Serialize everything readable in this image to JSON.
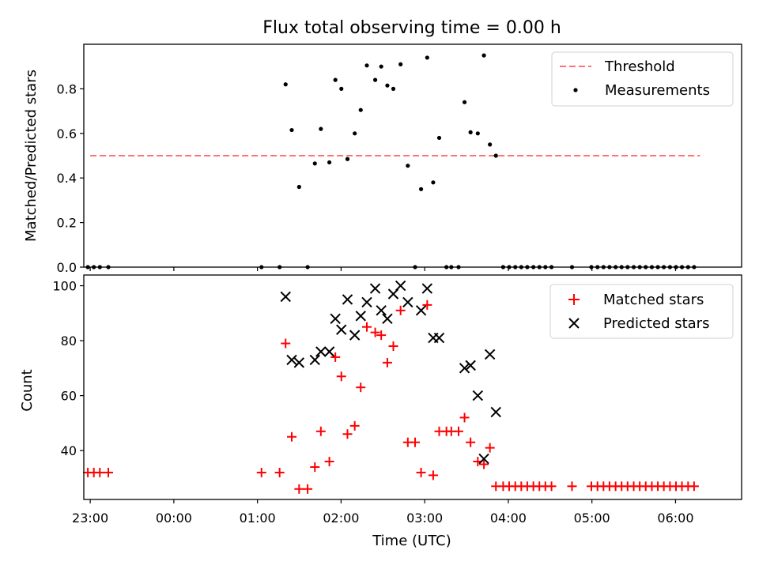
{
  "figure": {
    "title": "Flux total observing time = 0.00 h"
  },
  "chart_data": [
    {
      "type": "scatter",
      "panel": "top",
      "title": "Flux total observing time = 0.00 h",
      "ylabel": "Matched/Predicted stars",
      "xlabel": "",
      "x_units": "minutes since 23:00 UTC",
      "xlim": [
        -4.6,
        467.4
      ],
      "ylim": [
        0,
        1.0
      ],
      "yticks": [
        0.0,
        0.2,
        0.4,
        0.6,
        0.8
      ],
      "ytick_labels": [
        "0.0",
        "0.2",
        "0.4",
        "0.6",
        "0.8"
      ],
      "xticks": [
        0,
        60,
        120,
        180,
        240,
        300,
        360,
        420
      ],
      "legend_position": "upper right",
      "threshold": {
        "name": "Threshold",
        "value": 0.5,
        "x_range": [
          0,
          437.5
        ],
        "color": "#ff0000",
        "style": "dashed"
      },
      "series": [
        {
          "name": "Measurements",
          "color": "#000000",
          "marker": "dot",
          "points": [
            [
              -1.7,
              0.0
            ],
            [
              2.6,
              0.0
            ],
            [
              6.9,
              0.0
            ],
            [
              13.0,
              0.0
            ],
            [
              122.9,
              0.0
            ],
            [
              135.9,
              0.0
            ],
            [
              140.2,
              0.82
            ],
            [
              144.6,
              0.615
            ],
            [
              149.9,
              0.36
            ],
            [
              156.0,
              0.0
            ],
            [
              161.2,
              0.465
            ],
            [
              165.5,
              0.62
            ],
            [
              171.6,
              0.47
            ],
            [
              175.9,
              0.84
            ],
            [
              180.2,
              0.8
            ],
            [
              184.6,
              0.485
            ],
            [
              189.8,
              0.6
            ],
            [
              194.1,
              0.705
            ],
            [
              198.5,
              0.905
            ],
            [
              204.5,
              0.84
            ],
            [
              208.8,
              0.9
            ],
            [
              213.2,
              0.815
            ],
            [
              217.5,
              0.8
            ],
            [
              222.7,
              0.91
            ],
            [
              227.9,
              0.455
            ],
            [
              233.1,
              0.0
            ],
            [
              237.4,
              0.35
            ],
            [
              241.8,
              0.94
            ],
            [
              246.1,
              0.38
            ],
            [
              250.4,
              0.58
            ],
            [
              255.6,
              0.0
            ],
            [
              259.1,
              0.0
            ],
            [
              264.3,
              0.0
            ],
            [
              268.6,
              0.74
            ],
            [
              272.9,
              0.605
            ],
            [
              278.1,
              0.6
            ],
            [
              282.5,
              0.95
            ],
            [
              286.8,
              0.55
            ],
            [
              291.1,
              0.5
            ],
            [
              296.3,
              0.0
            ],
            [
              300.6,
              0.0
            ],
            [
              305.0,
              0.0
            ],
            [
              309.3,
              0.0
            ],
            [
              313.6,
              0.0
            ],
            [
              318.0,
              0.0
            ],
            [
              322.3,
              0.0
            ],
            [
              326.6,
              0.0
            ],
            [
              331.0,
              0.0
            ],
            [
              345.7,
              0.0
            ],
            [
              359.6,
              0.0
            ],
            [
              364.0,
              0.0
            ],
            [
              368.3,
              0.0
            ],
            [
              372.6,
              0.0
            ],
            [
              377.0,
              0.0
            ],
            [
              381.3,
              0.0
            ],
            [
              385.6,
              0.0
            ],
            [
              390.0,
              0.0
            ],
            [
              394.3,
              0.0
            ],
            [
              398.6,
              0.0
            ],
            [
              403.0,
              0.0
            ],
            [
              407.3,
              0.0
            ],
            [
              411.6,
              0.0
            ],
            [
              416.0,
              0.0
            ],
            [
              420.3,
              0.0
            ],
            [
              424.6,
              0.0
            ],
            [
              429.0,
              0.0
            ],
            [
              433.3,
              0.0
            ]
          ]
        }
      ]
    },
    {
      "type": "scatter",
      "panel": "bottom",
      "title": "",
      "ylabel": "Count",
      "xlabel": "Time (UTC)",
      "x_units": "minutes since 23:00 UTC",
      "xlim": [
        -4.6,
        467.4
      ],
      "ylim": [
        22.2,
        103.9
      ],
      "yticks": [
        40,
        60,
        80,
        100
      ],
      "ytick_labels": [
        "40",
        "60",
        "80",
        "100"
      ],
      "xticks": [
        0,
        60,
        120,
        180,
        240,
        300,
        360,
        420
      ],
      "xtick_labels": [
        "23:00",
        "00:00",
        "01:00",
        "02:00",
        "03:00",
        "04:00",
        "05:00",
        "06:00"
      ],
      "legend_position": "upper right",
      "series": [
        {
          "name": "Matched stars",
          "color": "#ff0000",
          "marker": "plus",
          "points": [
            [
              -1.7,
              32
            ],
            [
              2.6,
              32
            ],
            [
              6.9,
              32
            ],
            [
              13.0,
              32
            ],
            [
              122.9,
              32
            ],
            [
              135.9,
              32
            ],
            [
              140.2,
              79
            ],
            [
              144.6,
              45
            ],
            [
              149.9,
              26
            ],
            [
              156.0,
              26
            ],
            [
              161.2,
              34
            ],
            [
              165.5,
              47
            ],
            [
              171.6,
              36
            ],
            [
              175.9,
              74
            ],
            [
              180.2,
              67
            ],
            [
              184.6,
              46
            ],
            [
              189.8,
              49
            ],
            [
              194.1,
              63
            ],
            [
              198.5,
              85
            ],
            [
              204.5,
              83
            ],
            [
              208.8,
              82
            ],
            [
              213.2,
              72
            ],
            [
              217.5,
              78
            ],
            [
              222.7,
              91
            ],
            [
              227.9,
              43
            ],
            [
              233.1,
              43
            ],
            [
              237.4,
              32
            ],
            [
              241.8,
              93
            ],
            [
              246.1,
              31
            ],
            [
              250.4,
              47
            ],
            [
              255.6,
              47
            ],
            [
              259.1,
              47
            ],
            [
              264.3,
              47
            ],
            [
              268.6,
              52
            ],
            [
              272.9,
              43
            ],
            [
              278.1,
              36
            ],
            [
              282.5,
              35
            ],
            [
              286.8,
              41
            ],
            [
              291.1,
              27
            ],
            [
              296.3,
              27
            ],
            [
              300.6,
              27
            ],
            [
              305.0,
              27
            ],
            [
              309.3,
              27
            ],
            [
              313.6,
              27
            ],
            [
              318.0,
              27
            ],
            [
              322.3,
              27
            ],
            [
              326.6,
              27
            ],
            [
              331.0,
              27
            ],
            [
              345.7,
              27
            ],
            [
              359.6,
              27
            ],
            [
              364.0,
              27
            ],
            [
              368.3,
              27
            ],
            [
              372.6,
              27
            ],
            [
              377.0,
              27
            ],
            [
              381.3,
              27
            ],
            [
              385.6,
              27
            ],
            [
              390.0,
              27
            ],
            [
              394.3,
              27
            ],
            [
              398.6,
              27
            ],
            [
              403.0,
              27
            ],
            [
              407.3,
              27
            ],
            [
              411.6,
              27
            ],
            [
              416.0,
              27
            ],
            [
              420.3,
              27
            ],
            [
              424.6,
              27
            ],
            [
              429.0,
              27
            ],
            [
              433.3,
              27
            ]
          ]
        },
        {
          "name": "Predicted stars",
          "color": "#000000",
          "marker": "x",
          "points": [
            [
              140.2,
              96
            ],
            [
              144.6,
              73
            ],
            [
              149.9,
              72
            ],
            [
              161.2,
              73
            ],
            [
              165.5,
              76
            ],
            [
              171.6,
              76
            ],
            [
              175.9,
              88
            ],
            [
              180.2,
              84
            ],
            [
              184.6,
              95
            ],
            [
              189.8,
              82
            ],
            [
              194.1,
              89
            ],
            [
              198.5,
              94
            ],
            [
              204.5,
              99
            ],
            [
              208.8,
              91
            ],
            [
              213.2,
              88
            ],
            [
              217.5,
              97
            ],
            [
              222.7,
              100
            ],
            [
              227.9,
              94
            ],
            [
              237.4,
              91
            ],
            [
              241.8,
              99
            ],
            [
              246.1,
              81
            ],
            [
              250.4,
              81
            ],
            [
              268.6,
              70
            ],
            [
              272.9,
              71
            ],
            [
              278.1,
              60
            ],
            [
              282.5,
              37
            ],
            [
              286.8,
              75
            ],
            [
              291.1,
              54
            ]
          ]
        }
      ]
    }
  ]
}
